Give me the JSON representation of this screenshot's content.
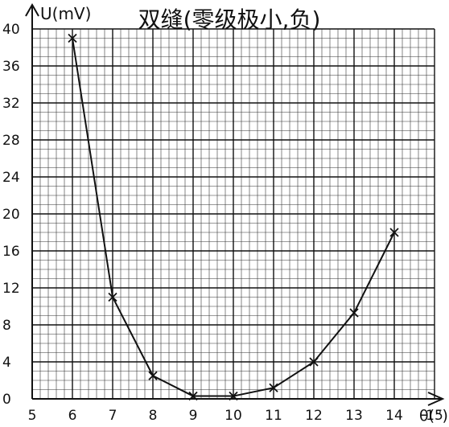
{
  "chart_data": {
    "type": "line",
    "title": "双缝(零级极小,负)",
    "xlabel": "θ(°)",
    "ylabel": "U(mV)",
    "xlim": [
      5,
      15
    ],
    "ylim": [
      0,
      40
    ],
    "x_ticks": [
      "5",
      "6",
      "7",
      "8",
      "9",
      "10",
      "11",
      "12",
      "13",
      "14",
      "15"
    ],
    "y_ticks": [
      "0",
      "4",
      "8",
      "12",
      "16",
      "20",
      "24",
      "28",
      "32",
      "36",
      "40"
    ],
    "grid": true,
    "series": [
      {
        "x": [
          6,
          7,
          8,
          9,
          10,
          11,
          12,
          13,
          14
        ],
        "y": [
          39,
          11,
          2.5,
          0.3,
          0.3,
          1.2,
          4,
          9.3,
          18
        ],
        "color": "#111111",
        "marker": "x"
      }
    ]
  }
}
